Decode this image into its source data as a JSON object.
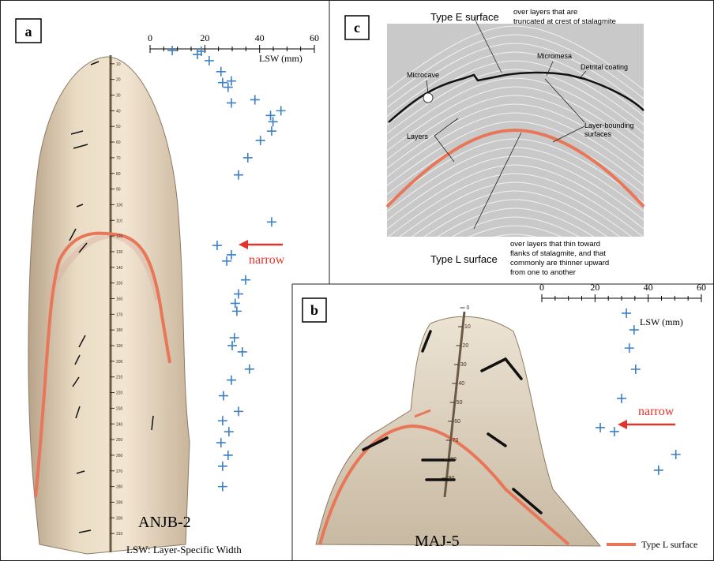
{
  "panels": {
    "a": {
      "label": "a",
      "sample": "ANJB-2",
      "note": "narrow",
      "footnote": "LSW: Layer-Specific Width"
    },
    "b": {
      "label": "b",
      "sample": "MAJ-5",
      "note": "narrow",
      "legend": "Type L surface"
    },
    "c": {
      "label": "c",
      "type_e": "Type E surface",
      "type_e_desc": [
        "over layers that are",
        "truncated at crest of stalagmite"
      ],
      "micromesa": "Micromesa",
      "microcave": "Microcave",
      "detrital": "Detrital coating",
      "layers": "Layers",
      "bounding": [
        "Layer-bounding",
        "surfaces"
      ],
      "type_l": "Type L surface",
      "type_l_desc": [
        "over layers that thin toward",
        "flanks of stalagmite, and that",
        "commonly are thinner upward",
        "from one to another"
      ]
    }
  },
  "chart_data": [
    {
      "type": "scatter",
      "xlabel": "LSW (mm)",
      "color": "#3b7fc6",
      "xlim": [
        0,
        60
      ],
      "xticks": [
        0,
        20,
        40,
        60
      ],
      "ylim": [
        0,
        320
      ],
      "yticks": [
        10,
        20,
        30,
        40,
        50,
        60,
        70,
        80,
        90,
        100,
        110,
        120,
        130,
        140,
        150,
        160,
        170,
        180,
        190,
        200,
        210,
        220,
        230,
        240,
        250,
        260,
        270,
        280,
        290,
        300,
        310
      ],
      "x": [
        8.1,
        17.3,
        18.7,
        21.6,
        25.9,
        29.7,
        26.5,
        28.5,
        29.7,
        38.3,
        47.8,
        44,
        44.9,
        44.4,
        40.3,
        35.7,
        32.3,
        44.4,
        24.5,
        29.7,
        28,
        34.9,
        32.3,
        31.1,
        31.7,
        30.8,
        30,
        33.7,
        36.3,
        29.7,
        26.8,
        32.3,
        26.5,
        28.8,
        25.9,
        28.5,
        26.5,
        26.5
      ],
      "values": [
        1.5,
        4,
        2,
        8,
        15,
        21,
        22,
        25,
        35,
        33,
        40,
        43,
        47,
        53,
        59,
        70,
        81,
        111,
        126,
        132,
        136,
        148,
        157,
        163,
        168,
        185,
        190,
        194,
        205,
        212,
        222,
        232,
        238,
        245,
        252,
        260,
        267,
        280
      ]
    },
    {
      "type": "scatter",
      "xlabel": "LSW (mm)",
      "color": "#3b7fc6",
      "xlim": [
        0,
        60
      ],
      "xticks": [
        0,
        20,
        40,
        60
      ],
      "ylim": [
        0,
        100
      ],
      "yticks": [
        0,
        10,
        20,
        30,
        40,
        50,
        60,
        70,
        80,
        90
      ],
      "x": [
        31.8,
        34.7,
        32.9,
        35.3,
        30,
        22,
        27.3,
        50.4,
        43.9
      ],
      "values": [
        2.9,
        11.7,
        21.3,
        32.5,
        47.9,
        63.3,
        65.4,
        77.5,
        85.8
      ]
    }
  ]
}
